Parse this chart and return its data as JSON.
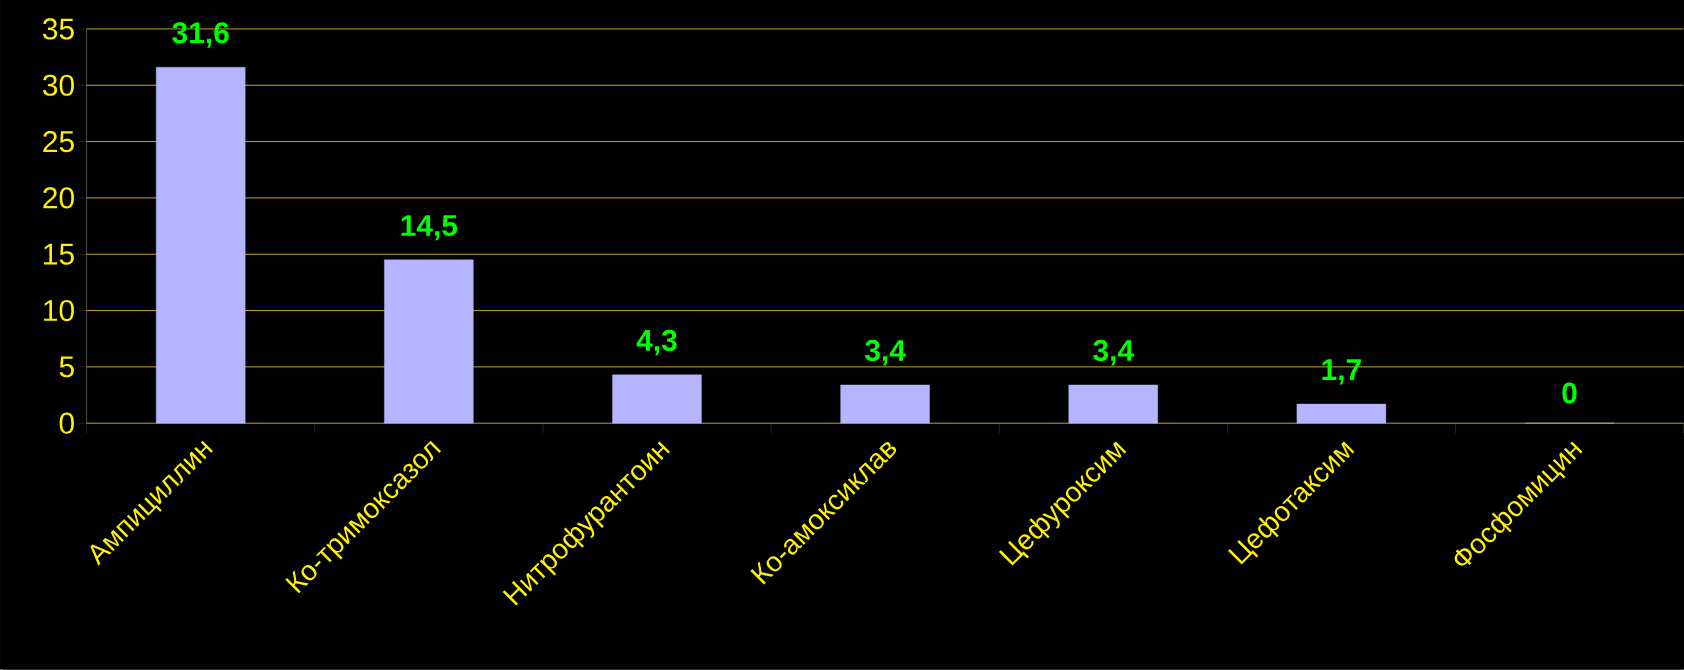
{
  "chart_data": {
    "type": "bar",
    "categories": [
      "Ампициллин",
      "Ко-тримоксазол",
      "Нитрофурантоин",
      "Ко-амоксиклав",
      "Цефуроксим",
      "Цефотаксим",
      "Фосфомицин"
    ],
    "values": [
      31.6,
      14.5,
      4.3,
      3.4,
      3.4,
      1.7,
      0
    ],
    "value_labels": [
      "31,6",
      "14,5",
      "4,3",
      "3,4",
      "3,4",
      "1,7",
      "0"
    ],
    "color": "#b4b4ff",
    "ylim": [
      0,
      35
    ],
    "yticks": [
      0,
      5,
      10,
      15,
      20,
      25,
      30,
      35
    ],
    "grid": "y"
  }
}
